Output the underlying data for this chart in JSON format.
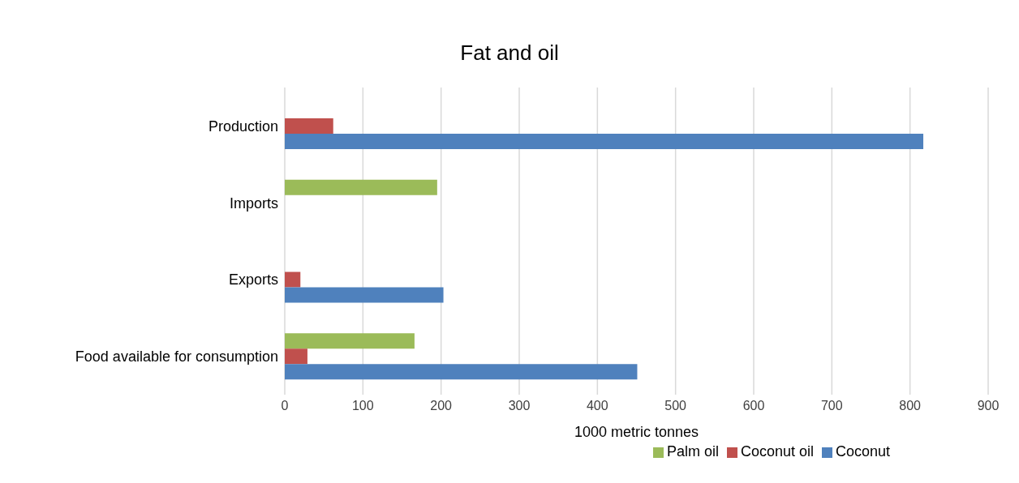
{
  "chart_data": {
    "type": "bar",
    "orientation": "horizontal",
    "title": "Fat and oil",
    "xlabel": "1000 metric tonnes",
    "categories": [
      "Production",
      "Imports",
      "Exports",
      "Food available for consumption"
    ],
    "series": [
      {
        "name": "Palm oil",
        "color": "#9bbb59",
        "values": [
          null,
          195,
          null,
          166
        ]
      },
      {
        "name": "Coconut oil",
        "color": "#c0504d",
        "values": [
          62,
          null,
          20,
          29
        ]
      },
      {
        "name": "Coconut",
        "color": "#4f81bd",
        "values": [
          817,
          null,
          203,
          451
        ]
      }
    ],
    "xlim": [
      0,
      900
    ],
    "xticks": [
      0,
      100,
      200,
      300,
      400,
      500,
      600,
      700,
      800,
      900
    ],
    "grid": "x",
    "legend": "bottom"
  }
}
